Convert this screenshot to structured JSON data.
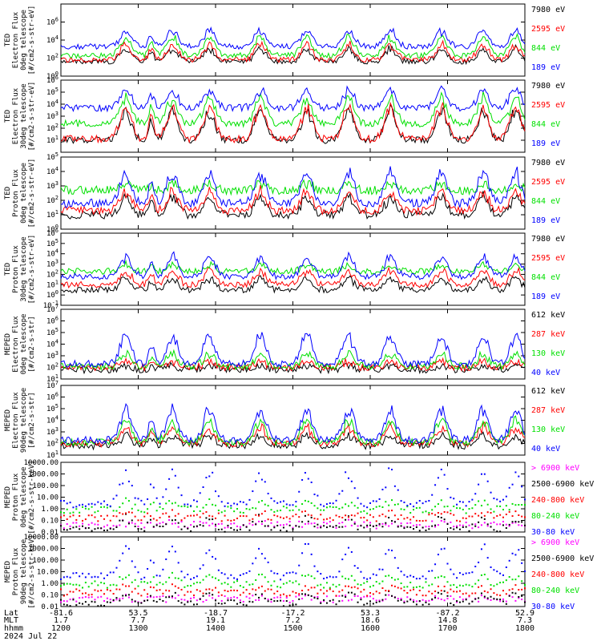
{
  "colors": {
    "blue": "#0000ff",
    "red": "#ff0000",
    "green": "#00e000",
    "black": "#000000",
    "magenta": "#ff00ff"
  },
  "x_ticks": [
    "1200",
    "1300",
    "1400",
    "1500",
    "1600",
    "1700",
    "1800"
  ],
  "footer": {
    "lat_label": "Lat",
    "mlt_label": "MLT",
    "time_label": "hhmm",
    "date": "2024 Jul 22",
    "lat_values": [
      "-81.6",
      "53.5",
      "-18.7",
      "-17.2",
      "53.3",
      "-87.2",
      "52.9"
    ],
    "mlt_values": [
      "1.7",
      "7.7",
      "19.1",
      "7.2",
      "18.6",
      "14.8",
      "7.3"
    ]
  },
  "chart_data": [
    {
      "type": "line",
      "log": true,
      "ylim": [
        1,
        100000000
      ],
      "ytick_labels": [
        "10^0",
        "10^2",
        "10^4",
        "10^6"
      ],
      "ylabel": [
        "TED",
        "Electron Flux",
        "0deg telescope",
        "[#/cm2-s-str-eV]"
      ],
      "series": [
        {
          "name": "7980 eV",
          "color": "black",
          "base": 1.6,
          "peak": 3.2
        },
        {
          "name": "2595 eV",
          "color": "red",
          "base": 1.8,
          "peak": 3.8
        },
        {
          "name": "844 eV",
          "color": "green",
          "base": 2.3,
          "peak": 4.6
        },
        {
          "name": "189 eV",
          "color": "blue",
          "base": 3.3,
          "peak": 5.3
        }
      ]
    },
    {
      "type": "line",
      "log": true,
      "ylim": [
        1,
        1000000
      ],
      "ytick_labels": [
        "10^1",
        "10^2",
        "10^3",
        "10^4",
        "10^5",
        "10^6"
      ],
      "ylabel": [
        "TED",
        "Electron Flux",
        "30deg telescope",
        "[#/cm2-s-str-eV]"
      ],
      "series": [
        {
          "name": "7980 eV",
          "color": "black",
          "base": 1.0,
          "peak": 3.8
        },
        {
          "name": "2595 eV",
          "color": "red",
          "base": 1.1,
          "peak": 4.2
        },
        {
          "name": "844 eV",
          "color": "green",
          "base": 2.4,
          "peak": 4.8
        },
        {
          "name": "189 eV",
          "color": "blue",
          "base": 3.7,
          "peak": 5.4
        }
      ]
    },
    {
      "type": "line",
      "log": true,
      "ylim": [
        1,
        100000
      ],
      "ytick_labels": [
        "10^0",
        "10^1",
        "10^2",
        "10^3",
        "10^4",
        "10^5"
      ],
      "ylabel": [
        "TED",
        "Proton Flux",
        "0deg telescope",
        "[#/cm2-s-str-eV]"
      ],
      "series": [
        {
          "name": "7980 eV",
          "color": "black",
          "base": 1.0,
          "peak": 2.4
        },
        {
          "name": "2595 eV",
          "color": "red",
          "base": 1.3,
          "peak": 2.8
        },
        {
          "name": "844 eV",
          "color": "green",
          "base": 2.7,
          "peak": 3.2
        },
        {
          "name": "189 eV",
          "color": "blue",
          "base": 1.8,
          "peak": 4.2
        }
      ]
    },
    {
      "type": "line",
      "log": true,
      "ylim": [
        0.1,
        1000000
      ],
      "ytick_labels": [
        "10^-1",
        "10^0",
        "10^1",
        "10^2",
        "10^3",
        "10^4",
        "10^5",
        "10^6"
      ],
      "ylabel": [
        "TED",
        "Proton Flux",
        "30deg telescope",
        "[#/cm2-s-str-eV]"
      ],
      "series": [
        {
          "name": "7980 eV",
          "color": "black",
          "base": 0.5,
          "peak": 1.8
        },
        {
          "name": "2595 eV",
          "color": "red",
          "base": 1.0,
          "peak": 2.6
        },
        {
          "name": "844 eV",
          "color": "green",
          "base": 2.3,
          "peak": 3.0
        },
        {
          "name": "189 eV",
          "color": "blue",
          "base": 1.8,
          "peak": 4.0
        }
      ]
    },
    {
      "type": "line",
      "log": true,
      "ylim": [
        10,
        10000000
      ],
      "ytick_labels": [
        "10^1",
        "10^2",
        "10^3",
        "10^4",
        "10^5",
        "10^6",
        "10^7"
      ],
      "ylabel": [
        "MEPED",
        "Electron Flux",
        "0deg telescope",
        "[#/cm2-s-str]"
      ],
      "series": [
        {
          "name": "612 keV",
          "color": "black",
          "base": 1.8,
          "peak": 2.2
        },
        {
          "name": "287 keV",
          "color": "red",
          "base": 2.0,
          "peak": 2.6
        },
        {
          "name": "130 keV",
          "color": "green",
          "base": 2.1,
          "peak": 3.3
        },
        {
          "name": "40 keV",
          "color": "blue",
          "base": 2.3,
          "peak": 5.1
        }
      ]
    },
    {
      "type": "line",
      "log": true,
      "ylim": [
        10,
        10000000
      ],
      "ytick_labels": [
        "10^1",
        "10^2",
        "10^3",
        "10^4",
        "10^5",
        "10^6",
        "10^7"
      ],
      "ylabel": [
        "MEPED",
        "Electron Flux",
        "90deg telescope",
        "[#/cm2-s-str]"
      ],
      "series": [
        {
          "name": "612 keV",
          "color": "black",
          "base": 1.8,
          "peak": 2.8
        },
        {
          "name": "287 keV",
          "color": "red",
          "base": 2.0,
          "peak": 3.6
        },
        {
          "name": "130 keV",
          "color": "green",
          "base": 2.1,
          "peak": 4.2
        },
        {
          "name": "40 keV",
          "color": "blue",
          "base": 2.3,
          "peak": 5.4
        }
      ]
    },
    {
      "type": "scatter",
      "log": true,
      "ylim": [
        0.01,
        10000
      ],
      "ytick_labels": [
        "0.01",
        "0.10",
        "1.00",
        "10.00",
        "100.00",
        "1000.00",
        "10000.00"
      ],
      "ylabel": [
        "MEPED",
        "Proton Flux",
        "0deg telescope",
        "[#/cm2-s-str-keV]"
      ],
      "series": [
        {
          "name": "> 6900 keV",
          "color": "magenta",
          "base": -1.4,
          "peak": -1.2
        },
        {
          "name": "2500-6900 keV",
          "color": "black",
          "base": -1.7,
          "peak": -0.7
        },
        {
          "name": "240-800 keV",
          "color": "red",
          "base": -0.8,
          "peak": -0.3
        },
        {
          "name": "80-240 keV",
          "color": "green",
          "base": -0.1,
          "peak": 0.7
        },
        {
          "name": "30-80 keV",
          "color": "blue",
          "base": 0.4,
          "peak": 3.4
        }
      ]
    },
    {
      "type": "scatter",
      "log": true,
      "ylim": [
        0.01,
        10000
      ],
      "ytick_labels": [
        "0.01",
        "0.10",
        "1.00",
        "10.00",
        "100.00",
        "1000.00",
        "10000.00"
      ],
      "ylabel": [
        "MEPED",
        "Proton Flux",
        "90deg telescope",
        "[#/cm2-s-str-keV]"
      ],
      "series": [
        {
          "name": "> 6900 keV",
          "color": "magenta",
          "base": -1.4,
          "peak": -1.2
        },
        {
          "name": "2500-6900 keV",
          "color": "black",
          "base": -1.7,
          "peak": -0.7
        },
        {
          "name": "240-800 keV",
          "color": "red",
          "base": -0.8,
          "peak": -0.3
        },
        {
          "name": "80-240 keV",
          "color": "green",
          "base": -0.1,
          "peak": 0.7
        },
        {
          "name": "30-80 keV",
          "color": "blue",
          "base": 0.6,
          "peak": 3.4
        }
      ]
    }
  ]
}
